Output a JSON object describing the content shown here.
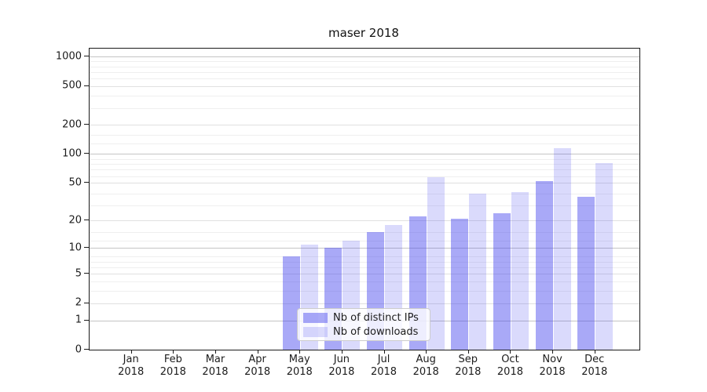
{
  "chart_data": {
    "type": "bar",
    "title": "maser 2018",
    "months": [
      "Jan",
      "Feb",
      "Mar",
      "Apr",
      "May",
      "Jun",
      "Jul",
      "Aug",
      "Sep",
      "Oct",
      "Nov",
      "Dec"
    ],
    "year": "2018",
    "series": [
      {
        "name": "Nb of distinct IPs",
        "values": [
          0,
          0,
          0,
          0,
          8,
          10,
          15,
          22,
          21,
          24,
          52,
          36
        ]
      },
      {
        "name": "Nb of downloads",
        "values": [
          0,
          0,
          0,
          0,
          11,
          12,
          18,
          57,
          39,
          40,
          115,
          81
        ]
      }
    ],
    "yscale": "log(1+x)",
    "ytick_values": [
      0,
      1,
      2,
      5,
      10,
      20,
      50,
      100,
      200,
      500,
      1000
    ],
    "ytick_labels": [
      "0",
      "1",
      "2",
      "5",
      "10",
      "20",
      "50",
      "100",
      "200",
      "500",
      "1000"
    ],
    "ylim": [
      0,
      1200
    ],
    "grid": "both",
    "legend_position": "lower-center-inside"
  },
  "legend": {
    "items": [
      {
        "label": "Nb of distinct IPs"
      },
      {
        "label": "Nb of downloads"
      }
    ]
  },
  "colors": {
    "bar_base": "#4444ee",
    "bar_ips_alpha": 0.46,
    "bar_downloads_alpha": 0.2,
    "grid_major": "#c4c4c4",
    "grid_labeled": "#e0e0e0",
    "grid_minor": "#efefef",
    "spine": "#1a1a1a",
    "text": "#1c1c1c"
  }
}
